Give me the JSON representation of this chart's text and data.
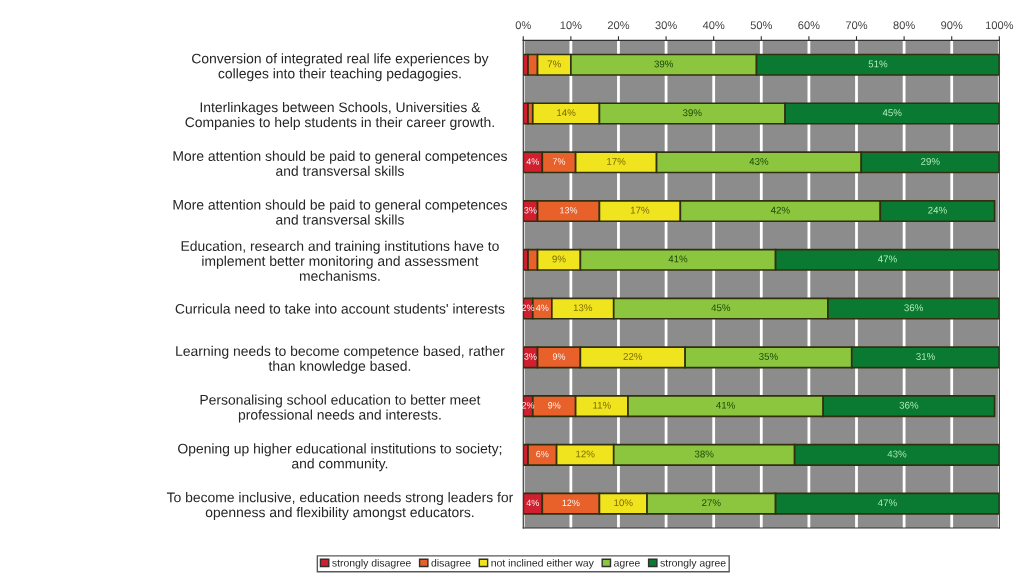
{
  "chart_data": {
    "type": "bar",
    "orientation": "horizontal",
    "stacked": true,
    "categories": [
      "Conversion of integrated real life experiences by\ncolleges into their teaching pedagogies.",
      "Interlinkages between Schools, Universities &\nCompanies to help students in their career growth.",
      "More attention should be paid to general competences\nand transversal skills",
      "More attention should be paid to general competences\nand transversal skills",
      "Education, research and training institutions have to\nimplement better monitoring and assessment\nmechanisms.",
      "Curricula need to take into account students' interests",
      "Learning needs to become competence based, rather\nthan knowledge based.",
      "Personalising school education to better meet\nprofessional needs and interests.",
      "Opening up higher educational institutions to society;\nand community.",
      "To become inclusive, education needs strong leaders for\nopenness and flexibility amongst educators."
    ],
    "series": [
      {
        "name": "strongly disagree",
        "color": "#d02030",
        "values": [
          1,
          1,
          4,
          3,
          1,
          2,
          3,
          2,
          1,
          4
        ],
        "value_labels": [
          null,
          null,
          "4%",
          "3%",
          null,
          "2%",
          "3%",
          "2%",
          null,
          "4%"
        ]
      },
      {
        "name": "disagree",
        "color": "#e8602a",
        "values": [
          2,
          1,
          7,
          13,
          2,
          4,
          9,
          9,
          6,
          12
        ],
        "value_labels": [
          null,
          null,
          "7%",
          "13%",
          null,
          "4%",
          "9%",
          "9%",
          "6%",
          "12%"
        ]
      },
      {
        "name": "not inclined either way",
        "color": "#f0e41e",
        "values": [
          7,
          14,
          17,
          17,
          9,
          13,
          22,
          11,
          12,
          10
        ],
        "value_labels": [
          "7%",
          "14%",
          "17%",
          "17%",
          "9%",
          "13%",
          "22%",
          "11%",
          "12%",
          "10%"
        ]
      },
      {
        "name": "agree",
        "color": "#8cc63f",
        "values": [
          39,
          39,
          43,
          42,
          41,
          45,
          35,
          41,
          38,
          27
        ],
        "value_labels": [
          "39%",
          "39%",
          "43%",
          "42%",
          "41%",
          "45%",
          "35%",
          "41%",
          "38%",
          "27%"
        ]
      },
      {
        "name": "strongly agree",
        "color": "#0a7a32",
        "values": [
          51,
          45,
          29,
          24,
          47,
          36,
          31,
          36,
          43,
          47
        ],
        "value_labels": [
          "51%",
          "45%",
          "29%",
          "24%",
          "47%",
          "36%",
          "31%",
          "36%",
          "43%",
          "47%"
        ]
      }
    ],
    "xlim": [
      0,
      100
    ],
    "xticks": [
      {
        "value": 0,
        "label": "0%"
      },
      {
        "value": 10,
        "label": "10%"
      },
      {
        "value": 20,
        "label": "20%"
      },
      {
        "value": 30,
        "label": "30%"
      },
      {
        "value": 40,
        "label": "40%"
      },
      {
        "value": 50,
        "label": "50%"
      },
      {
        "value": 60,
        "label": "60%"
      },
      {
        "value": 70,
        "label": "70%"
      },
      {
        "value": 80,
        "label": "80%"
      },
      {
        "value": 90,
        "label": "90%"
      },
      {
        "value": 100,
        "label": "100%"
      }
    ],
    "grid": "x",
    "legend": "bottom"
  }
}
